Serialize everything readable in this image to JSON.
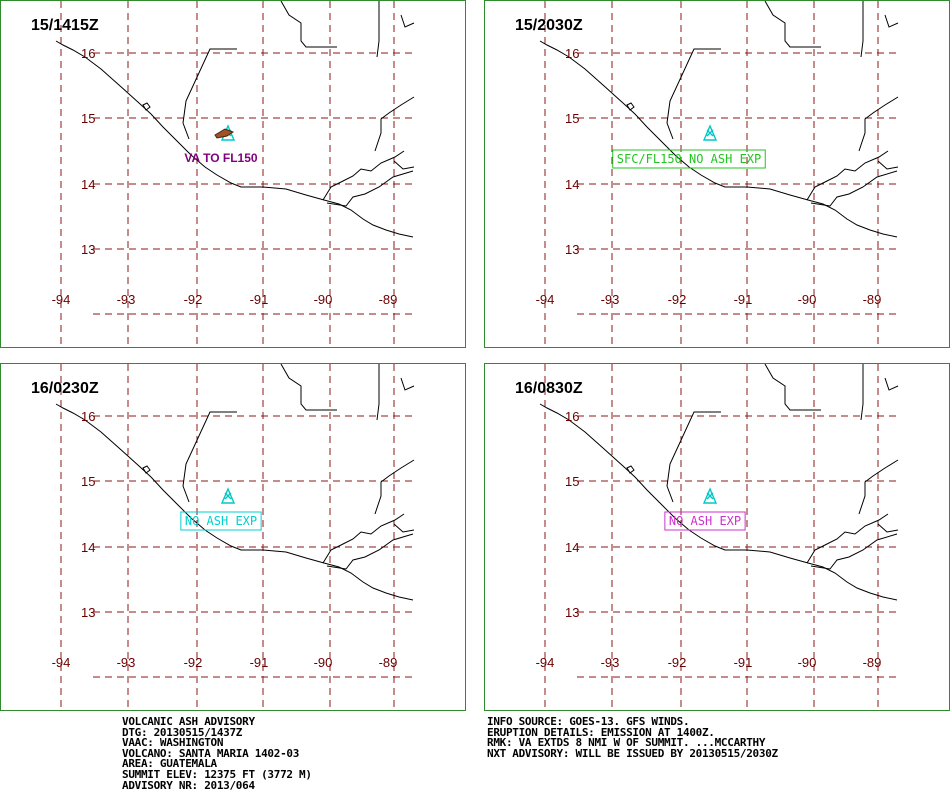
{
  "panels": [
    {
      "title": "15/1415Z",
      "label": "VA TO FL150",
      "label_color": "#800080",
      "label_boxed": false,
      "ash_plume": true
    },
    {
      "title": "15/2030Z",
      "label": "SFC/FL150 NO ASH EXP",
      "label_color": "#22c422",
      "label_boxed": true,
      "ash_plume": false
    },
    {
      "title": "16/0230Z",
      "label": "NO ASH EXP",
      "label_color": "#00d0d0",
      "label_boxed": true,
      "ash_plume": false
    },
    {
      "title": "16/0830Z",
      "label": "NO ASH EXP",
      "label_color": "#cc33cc",
      "label_boxed": true,
      "ash_plume": false
    }
  ],
  "map": {
    "lat_labels": [
      "16",
      "15",
      "14",
      "13"
    ],
    "lon_labels": [
      "-94",
      "-93",
      "-92",
      "-91",
      "-90",
      "-89"
    ],
    "grid_color": "#8b1a1a",
    "label_color": "#6b0000",
    "volcano_color": "#00c8c8",
    "volcano_icon": "volcano-icon"
  },
  "advisory_left": [
    "VOLCANIC ASH ADVISORY",
    "DTG: 20130515/1437Z",
    "VAAC: WASHINGTON",
    "VOLCANO: SANTA MARIA 1402-03",
    "AREA: GUATEMALA",
    "SUMMIT ELEV: 12375 FT (3772 M)",
    "ADVISORY NR: 2013/064"
  ],
  "advisory_right": [
    "INFO SOURCE: GOES-13. GFS WINDS.",
    "ERUPTION DETAILS: EMISSION AT 1400Z.",
    "RMK: VA EXTDS 8 NMI W OF SUMMIT. ...MCCARTHY",
    "NXT ADVISORY: WILL BE ISSUED BY 20130515/2030Z"
  ]
}
